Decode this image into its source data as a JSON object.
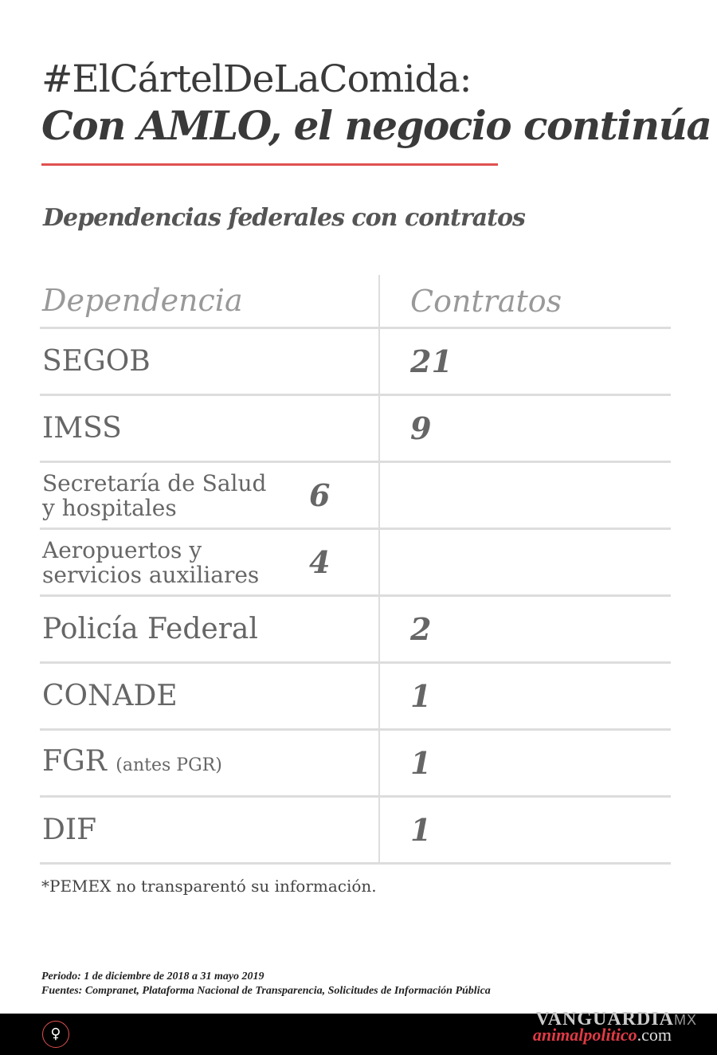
{
  "title": {
    "line1": "#ElCártelDeLaComida:",
    "line2": "Con AMLO, el negocio continúa"
  },
  "subtitle": "Dependencias federales con contratos",
  "colors": {
    "accent": "#e0504f",
    "text": "#3a3a3a",
    "header": "#999999",
    "grid": "#dddddd",
    "footer_bg": "#000000"
  },
  "chart_data": {
    "type": "table",
    "columns": [
      "Dependencia",
      "Contratos"
    ],
    "rows": [
      {
        "name": "SEGOB",
        "note": "",
        "value": "21"
      },
      {
        "name": "IMSS",
        "note": "",
        "value": "9"
      },
      {
        "name": "Secretaría de Salud y hospitales",
        "note": "",
        "value": "6"
      },
      {
        "name": "Aeropuertos y servicios auxiliares",
        "note": "",
        "value": "4"
      },
      {
        "name": "Policía Federal",
        "note": "",
        "value": "2"
      },
      {
        "name": "CONADE",
        "note": "",
        "value": "1"
      },
      {
        "name": "FGR",
        "note": "(antes PGR)",
        "value": "1"
      },
      {
        "name": "DIF",
        "note": "",
        "value": "1"
      }
    ]
  },
  "footnote": "*PEMEX no transparentó su información.",
  "sources": {
    "period": "Periodo: 1 de diciembre de 2018 a 31 mayo 2019",
    "sources": "Fuentes: Compranet, Plataforma Nacional de Transparencia, Solicitudes de Información Pública"
  },
  "footer": {
    "logo_icon": "elephant-head-icon",
    "vanguardia": "VANGUARDIA",
    "vanguardia_suffix": "MX",
    "animal": "animalpolitico",
    "animal_suffix": ".com"
  }
}
